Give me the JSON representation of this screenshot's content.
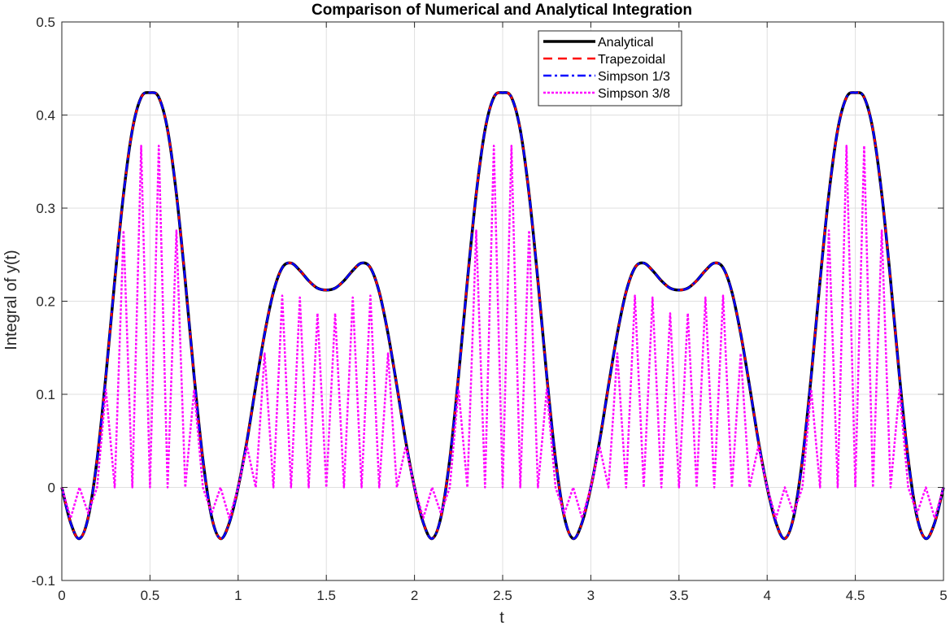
{
  "chart_data": {
    "type": "line",
    "title": "Comparison of Numerical and Analytical Integration",
    "xlabel": "t",
    "ylabel": "Integral of y(t)",
    "xlim": [
      0,
      5
    ],
    "ylim": [
      -0.1,
      0.5
    ],
    "xticks": [
      0,
      0.5,
      1,
      1.5,
      2,
      2.5,
      3,
      3.5,
      4,
      4.5,
      5
    ],
    "xtick_labels": [
      "0",
      "0.5",
      "1",
      "1.5",
      "2",
      "2.5",
      "3",
      "3.5",
      "4",
      "4.5",
      "5"
    ],
    "yticks": [
      -0.1,
      0,
      0.1,
      0.2,
      0.3,
      0.4,
      0.5
    ],
    "ytick_labels": [
      "-0.1",
      "0",
      "0.1",
      "0.2",
      "0.3",
      "0.4",
      "0.5"
    ],
    "grid": true,
    "legend_position": "top-right",
    "x": [
      0,
      0.05,
      0.1,
      0.15,
      0.2,
      0.25,
      0.3,
      0.35,
      0.4,
      0.45,
      0.5,
      0.55,
      0.6,
      0.65,
      0.7,
      0.75,
      0.8,
      0.85,
      0.9,
      0.95,
      1,
      1.05,
      1.1,
      1.15,
      1.2,
      1.25,
      1.3,
      1.35,
      1.4,
      1.45,
      1.5,
      1.55,
      1.6,
      1.65,
      1.7,
      1.75,
      1.8,
      1.85,
      1.9,
      1.95,
      2,
      2.05,
      2.1,
      2.15,
      2.2,
      2.25,
      2.3,
      2.35,
      2.4,
      2.45,
      2.5,
      2.55,
      2.6,
      2.65,
      2.7,
      2.75,
      2.8,
      2.85,
      2.9,
      2.95,
      3,
      3.05,
      3.1,
      3.15,
      3.2,
      3.25,
      3.3,
      3.35,
      3.4,
      3.45,
      3.5,
      3.55,
      3.6,
      3.65,
      3.7,
      3.75,
      3.8,
      3.85,
      3.9,
      3.95,
      4,
      4.05,
      4.1,
      4.15,
      4.2,
      4.25,
      4.3,
      4.35,
      4.4,
      4.45,
      4.5,
      4.55,
      4.6,
      4.65,
      4.7,
      4.75,
      4.8,
      4.85,
      4.9,
      4.95,
      5
    ],
    "series": [
      {
        "name": "Analytical",
        "color": "#000000",
        "style": "solid",
        "values": [
          0,
          -0.038,
          -0.055,
          -0.032,
          0.03,
          0.12,
          0.222,
          0.315,
          0.384,
          0.419,
          0.424,
          0.419,
          0.384,
          0.315,
          0.222,
          0.12,
          0.03,
          -0.032,
          -0.055,
          -0.038,
          0,
          0.05,
          0.109,
          0.165,
          0.21,
          0.236,
          0.241,
          0.233,
          0.222,
          0.214,
          0.212,
          0.214,
          0.222,
          0.233,
          0.241,
          0.236,
          0.21,
          0.165,
          0.109,
          0.05,
          0,
          -0.038,
          -0.055,
          -0.032,
          0.03,
          0.12,
          0.222,
          0.315,
          0.384,
          0.419,
          0.424,
          0.419,
          0.384,
          0.315,
          0.222,
          0.12,
          0.03,
          -0.032,
          -0.055,
          -0.038,
          0,
          0.05,
          0.109,
          0.165,
          0.21,
          0.236,
          0.241,
          0.233,
          0.222,
          0.214,
          0.212,
          0.214,
          0.222,
          0.233,
          0.241,
          0.236,
          0.21,
          0.165,
          0.109,
          0.05,
          0,
          -0.038,
          -0.055,
          -0.032,
          0.03,
          0.12,
          0.222,
          0.315,
          0.384,
          0.419,
          0.424,
          0.419,
          0.384,
          0.315,
          0.222,
          0.12,
          0.03,
          -0.032,
          -0.055,
          -0.038,
          0
        ]
      },
      {
        "name": "Trapezoidal",
        "color": "#ff0000",
        "style": "dashed",
        "values": [
          0,
          -0.038,
          -0.055,
          -0.032,
          0.03,
          0.12,
          0.222,
          0.315,
          0.384,
          0.419,
          0.424,
          0.419,
          0.384,
          0.315,
          0.222,
          0.12,
          0.03,
          -0.032,
          -0.055,
          -0.038,
          0,
          0.05,
          0.109,
          0.165,
          0.21,
          0.236,
          0.241,
          0.233,
          0.222,
          0.214,
          0.212,
          0.214,
          0.222,
          0.233,
          0.241,
          0.236,
          0.21,
          0.165,
          0.109,
          0.05,
          0,
          -0.038,
          -0.055,
          -0.032,
          0.03,
          0.12,
          0.222,
          0.315,
          0.384,
          0.419,
          0.424,
          0.419,
          0.384,
          0.315,
          0.222,
          0.12,
          0.03,
          -0.032,
          -0.055,
          -0.038,
          0,
          0.05,
          0.109,
          0.165,
          0.21,
          0.236,
          0.241,
          0.233,
          0.222,
          0.214,
          0.212,
          0.214,
          0.222,
          0.233,
          0.241,
          0.236,
          0.21,
          0.165,
          0.109,
          0.05,
          0,
          -0.038,
          -0.055,
          -0.032,
          0.03,
          0.12,
          0.222,
          0.315,
          0.384,
          0.419,
          0.424,
          0.419,
          0.384,
          0.315,
          0.222,
          0.12,
          0.03,
          -0.032,
          -0.055,
          -0.038,
          0
        ]
      },
      {
        "name": "Simpson 1/3",
        "color": "#0000ff",
        "style": "dashdot",
        "values": [
          0,
          -0.038,
          -0.055,
          -0.032,
          0.03,
          0.12,
          0.222,
          0.315,
          0.384,
          0.419,
          0.424,
          0.419,
          0.384,
          0.315,
          0.222,
          0.12,
          0.03,
          -0.032,
          -0.055,
          -0.038,
          0,
          0.05,
          0.109,
          0.165,
          0.21,
          0.236,
          0.241,
          0.233,
          0.222,
          0.214,
          0.212,
          0.214,
          0.222,
          0.233,
          0.241,
          0.236,
          0.21,
          0.165,
          0.109,
          0.05,
          0,
          -0.038,
          -0.055,
          -0.032,
          0.03,
          0.12,
          0.222,
          0.315,
          0.384,
          0.419,
          0.424,
          0.419,
          0.384,
          0.315,
          0.222,
          0.12,
          0.03,
          -0.032,
          -0.055,
          -0.038,
          0,
          0.05,
          0.109,
          0.165,
          0.21,
          0.236,
          0.241,
          0.233,
          0.222,
          0.214,
          0.212,
          0.214,
          0.222,
          0.233,
          0.241,
          0.236,
          0.21,
          0.165,
          0.109,
          0.05,
          0,
          -0.038,
          -0.055,
          -0.032,
          0.03,
          0.12,
          0.222,
          0.315,
          0.384,
          0.419,
          0.424,
          0.419,
          0.384,
          0.315,
          0.222,
          0.12,
          0.03,
          -0.032,
          -0.055,
          -0.038,
          0
        ]
      },
      {
        "name": "Simpson 3/8",
        "color": "#ff00ff",
        "style": "dotted",
        "values": [
          0,
          -0.033,
          0,
          -0.028,
          0,
          0.105,
          0,
          0.276,
          0,
          0.367,
          0,
          0.367,
          0,
          0.276,
          0,
          0.105,
          0,
          -0.028,
          0,
          -0.033,
          0,
          0.044,
          0,
          0.144,
          0,
          0.206,
          0,
          0.204,
          0,
          0.187,
          0,
          0.187,
          0,
          0.204,
          0,
          0.206,
          0,
          0.144,
          0,
          0.044,
          0,
          -0.033,
          0,
          -0.028,
          0,
          0.105,
          0,
          0.276,
          0,
          0.367,
          0,
          0.367,
          0,
          0.276,
          0,
          0.105,
          0,
          -0.028,
          0,
          -0.033,
          0,
          0.044,
          0,
          0.144,
          0,
          0.206,
          0,
          0.204,
          0,
          0.187,
          0,
          0.187,
          0,
          0.204,
          0,
          0.206,
          0,
          0.144,
          0,
          0.044,
          0,
          -0.033,
          0,
          -0.028,
          0,
          0.105,
          0,
          0.276,
          0,
          0.367,
          0,
          0.367,
          0,
          0.276,
          0,
          0.105,
          0,
          -0.028,
          0,
          -0.033,
          0
        ]
      }
    ]
  }
}
